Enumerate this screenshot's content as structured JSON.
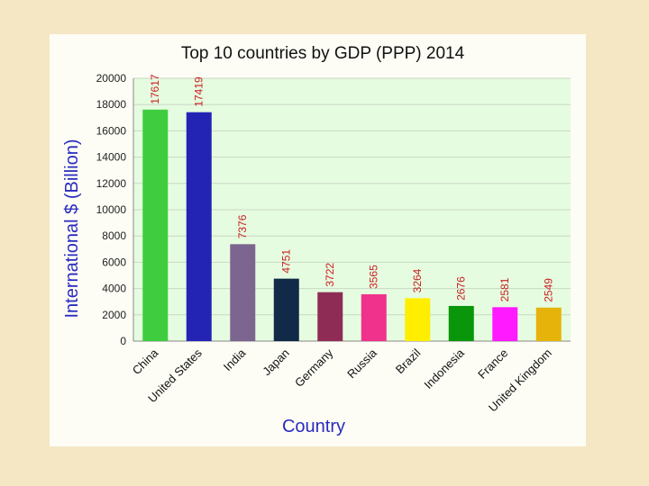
{
  "chart_data": {
    "type": "bar",
    "title": "Top 10 countries by GDP (PPP) 2014",
    "xlabel": "Country",
    "ylabel": "International $ (Billion)",
    "ylim": [
      0,
      20000
    ],
    "yticks": [
      0,
      2000,
      4000,
      6000,
      8000,
      10000,
      12000,
      14000,
      16000,
      18000,
      20000
    ],
    "grid": true,
    "categories": [
      "China",
      "United States",
      "India",
      "Japan",
      "Germany",
      "Russia",
      "Brazil",
      "Indonesia",
      "France",
      "United Kingdom"
    ],
    "values": [
      17617,
      17419,
      7376,
      4751,
      3722,
      3565,
      3264,
      2676,
      2581,
      2549
    ],
    "colors": [
      "#3fcd3f",
      "#2424b4",
      "#7c6690",
      "#102a48",
      "#8e2c56",
      "#f0328c",
      "#ffee00",
      "#0a960a",
      "#ff1aff",
      "#e6b30a"
    ],
    "plot_background": "#e6fce0",
    "label_color": "#c81e1e"
  }
}
